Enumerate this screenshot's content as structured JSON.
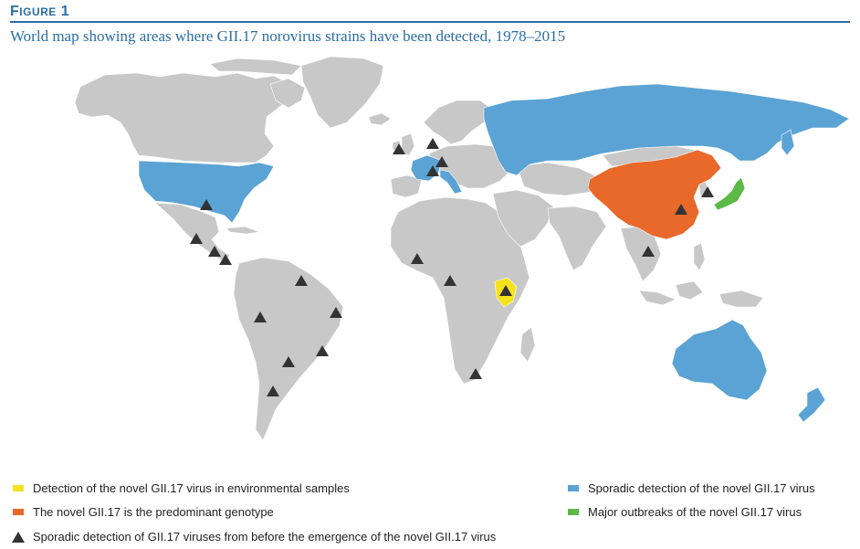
{
  "figure": {
    "label_first": "F",
    "label_rest": "IGURE",
    "label_num": "1",
    "title": "World map showing areas where GII.17 norovirus strains have been detected, 1978–2015",
    "accent_color": "#2a6ea6"
  },
  "map": {
    "land_color": "#c8c8c8",
    "colors": {
      "environmental": "#f5e21d",
      "predominant": "#e8692a",
      "sporadic_novel": "#5ba3d4",
      "major_outbreaks": "#5cb947",
      "marker": "#333333"
    },
    "regions": {
      "environmental": [
        "Kenya"
      ],
      "predominant": [
        "China"
      ],
      "sporadic_novel": [
        "United States",
        "France",
        "Italy",
        "Russia",
        "Australia",
        "New Zealand"
      ],
      "major_outbreaks": [
        "Japan"
      ]
    },
    "marker_count": 25
  },
  "legend": {
    "environmental": "Detection of the novel GII.17 virus in environmental samples",
    "predominant": "The novel GII.17 is the predominant genotype",
    "triangle": "Sporadic detection of GII.17 viruses from before the emergence of the novel GII.17 virus",
    "sporadic_novel": "Sporadic detection of the novel GII.17 virus",
    "major_outbreaks": "Major outbreaks of the novel GII.17 virus"
  }
}
